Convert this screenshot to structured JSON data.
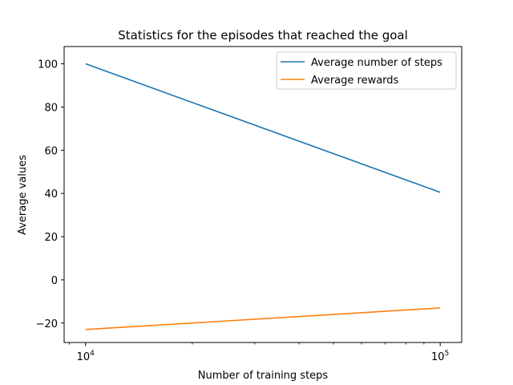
{
  "chart_data": {
    "type": "line",
    "title": "Statistics for the episodes that reached the goal",
    "xlabel": "Number of training steps",
    "ylabel": "Average values",
    "xscale": "log",
    "xlim": [
      8700,
      115000
    ],
    "ylim": [
      -29,
      108
    ],
    "x": [
      10000,
      100000
    ],
    "xticks": [
      {
        "value": 10000,
        "base": "10",
        "exp": "4"
      },
      {
        "value": 100000,
        "base": "10",
        "exp": "5"
      }
    ],
    "yticks": [
      {
        "value": -20,
        "label": "−20"
      },
      {
        "value": 0,
        "label": "0"
      },
      {
        "value": 20,
        "label": "20"
      },
      {
        "value": 40,
        "label": "40"
      },
      {
        "value": 60,
        "label": "60"
      },
      {
        "value": 80,
        "label": "80"
      },
      {
        "value": 100,
        "label": "100"
      }
    ],
    "series": [
      {
        "name": "Average number of steps",
        "color": "#1f77b4",
        "values": [
          100,
          40.5
        ]
      },
      {
        "name": "Average rewards",
        "color": "#ff7f0e",
        "values": [
          -23,
          -13
        ]
      }
    ],
    "legend": "top-right",
    "grid": false
  }
}
